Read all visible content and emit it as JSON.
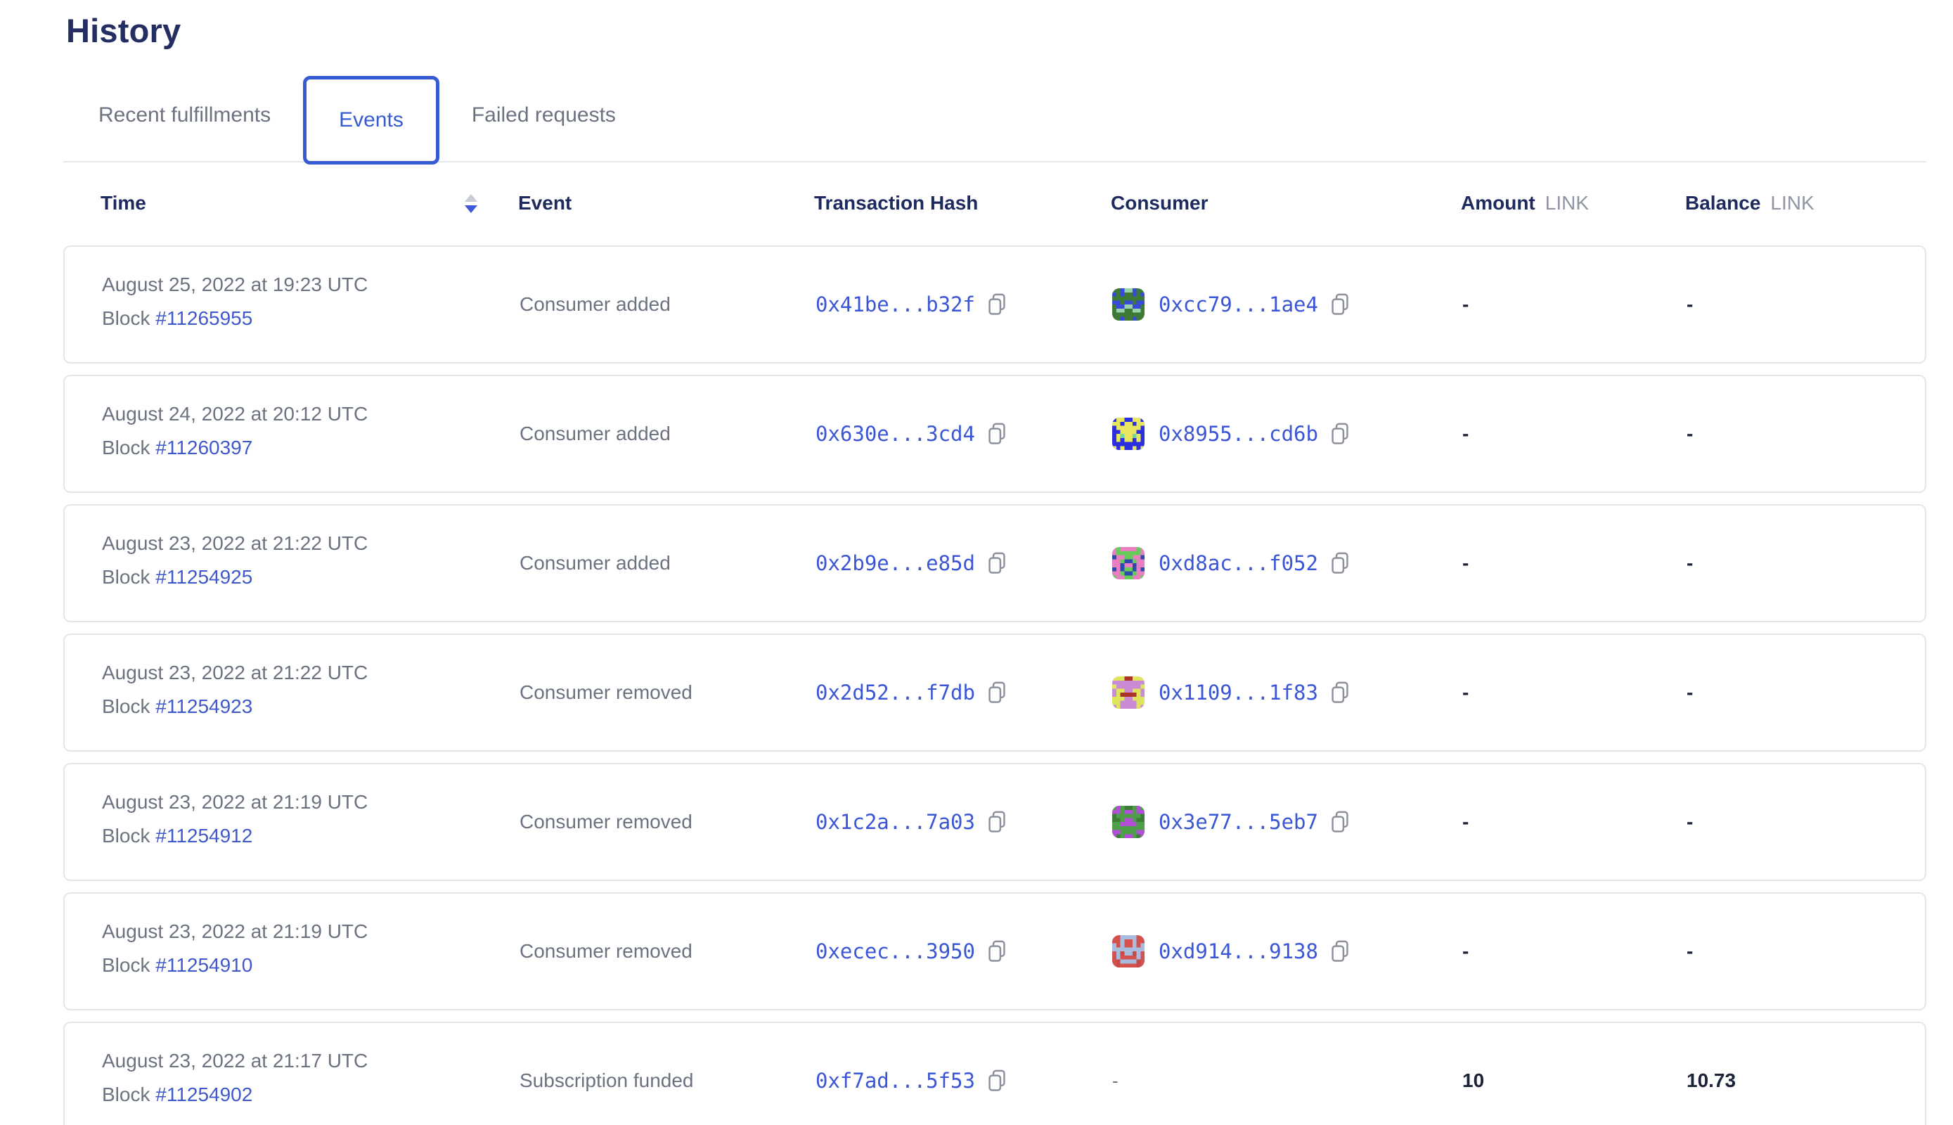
{
  "page": {
    "title": "History"
  },
  "tabs": [
    {
      "label": "Recent fulfillments",
      "active": false
    },
    {
      "label": "Events",
      "active": true
    },
    {
      "label": "Failed requests",
      "active": false
    }
  ],
  "sort": {
    "column": "Time",
    "direction": "descending"
  },
  "colors": {
    "accent_blue": "#375bd2",
    "link_blue": "#3a55d6",
    "heading_navy": "#252e63",
    "header_navy": "#1d2a5e",
    "body_gray": "#6b7280",
    "unit_gray": "#8f95a4",
    "card_border": "#e4e6eb",
    "value_dark": "#1a2238"
  },
  "table": {
    "columns": {
      "time": "Time",
      "event": "Event",
      "tx": "Transaction Hash",
      "consumer": "Consumer",
      "amount": "Amount",
      "balance": "Balance",
      "unit": "LINK"
    },
    "block_prefix": "Block ",
    "rows": [
      {
        "time": "August 25, 2022 at 19:23 UTC",
        "block": "#11265955",
        "event": "Consumer added",
        "tx": "0x41be...b32f",
        "consumer": "0xcc79...1ae4",
        "avatar": {
          "name": "identicon-green-blue",
          "colors": [
            "#3c7a35",
            "#3949d9",
            "#99d3ae"
          ]
        },
        "amount": "-",
        "balance": "-"
      },
      {
        "time": "August 24, 2022 at 20:12 UTC",
        "block": "#11260397",
        "event": "Consumer added",
        "tx": "0x630e...3cd4",
        "consumer": "0x8955...cd6b",
        "avatar": {
          "name": "identicon-blue-yellow",
          "colors": [
            "#2b2fe0",
            "#e9e75f",
            "#6fd9a6"
          ]
        },
        "amount": "-",
        "balance": "-"
      },
      {
        "time": "August 23, 2022 at 21:22 UTC",
        "block": "#11254925",
        "event": "Consumer added",
        "tx": "0x2b9e...e85d",
        "consumer": "0xd8ac...f052",
        "avatar": {
          "name": "identicon-green-pink",
          "colors": [
            "#67cb59",
            "#e77fc0",
            "#2d49b0"
          ]
        },
        "amount": "-",
        "balance": "-"
      },
      {
        "time": "August 23, 2022 at 21:22 UTC",
        "block": "#11254923",
        "event": "Consumer removed",
        "tx": "0x2d52...f7db",
        "consumer": "0x1109...1f83",
        "avatar": {
          "name": "identicon-pink-yellow",
          "colors": [
            "#c98bd4",
            "#e0e55e",
            "#aa3427"
          ]
        },
        "amount": "-",
        "balance": "-"
      },
      {
        "time": "August 23, 2022 at 21:19 UTC",
        "block": "#11254912",
        "event": "Consumer removed",
        "tx": "0x1c2a...7a03",
        "consumer": "0x3e77...5eb7",
        "avatar": {
          "name": "identicon-green-purple",
          "colors": [
            "#4f9f4a",
            "#b14fd6",
            "#3d7d38"
          ]
        },
        "amount": "-",
        "balance": "-"
      },
      {
        "time": "August 23, 2022 at 21:19 UTC",
        "block": "#11254910",
        "event": "Consumer removed",
        "tx": "0xecec...3950",
        "consumer": "0xd914...9138",
        "avatar": {
          "name": "identicon-red-lavender",
          "colors": [
            "#d4524d",
            "#a9bbdf",
            "#c64a45"
          ]
        },
        "amount": "-",
        "balance": "-"
      },
      {
        "time": "August 23, 2022 at 21:17 UTC",
        "block": "#11254902",
        "event": "Subscription funded",
        "tx": "0xf7ad...5f53",
        "consumer": "-",
        "avatar": null,
        "amount": "10",
        "balance": "10.73"
      }
    ]
  }
}
